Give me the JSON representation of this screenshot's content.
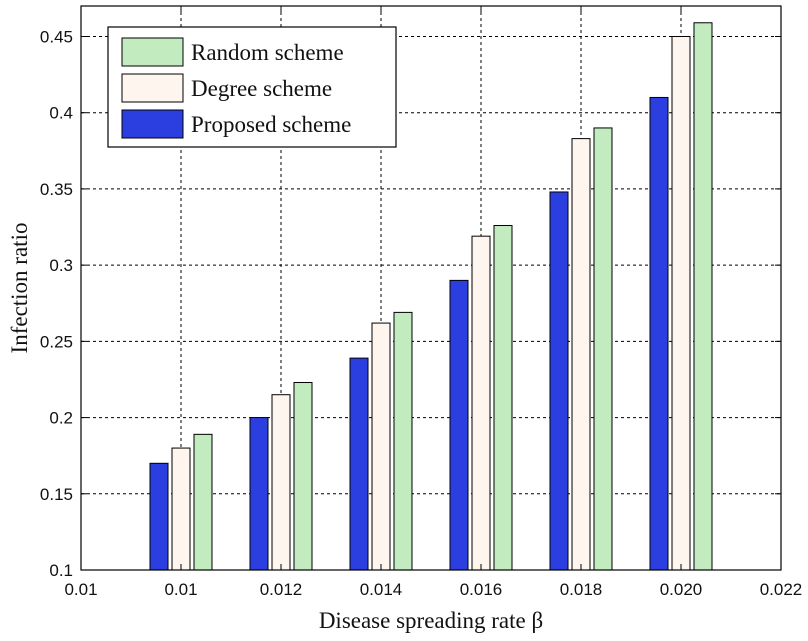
{
  "chart_data": {
    "type": "bar",
    "title": "",
    "xlabel": "Disease spreading rate β",
    "ylabel": "Infection ratio",
    "categories": [
      "0.01",
      "0.012",
      "0.014",
      "0.016",
      "0.018",
      "0.020"
    ],
    "x_ticks": [
      "0.01",
      "0.01",
      "0.012",
      "0.014",
      "0.016",
      "0.018",
      "0.020",
      "0.022"
    ],
    "y_ticks": [
      "0.1",
      "0.15",
      "0.2",
      "0.25",
      "0.3",
      "0.35",
      "0.4",
      "0.45"
    ],
    "ylim": [
      0.1,
      0.47
    ],
    "grid": true,
    "legend_position": "top-left",
    "legend_order": [
      "Random scheme",
      "Degree scheme",
      "Proposed scheme"
    ],
    "series": [
      {
        "name": "Proposed scheme",
        "color": "#2b3fe0",
        "values": [
          0.17,
          0.2,
          0.239,
          0.29,
          0.348,
          0.41
        ]
      },
      {
        "name": "Degree scheme",
        "color": "#fdf5ee",
        "values": [
          0.18,
          0.215,
          0.262,
          0.319,
          0.383,
          0.45
        ]
      },
      {
        "name": "Random scheme",
        "color": "#c2ebc0",
        "values": [
          0.189,
          0.223,
          0.269,
          0.326,
          0.39,
          0.459
        ]
      }
    ]
  }
}
